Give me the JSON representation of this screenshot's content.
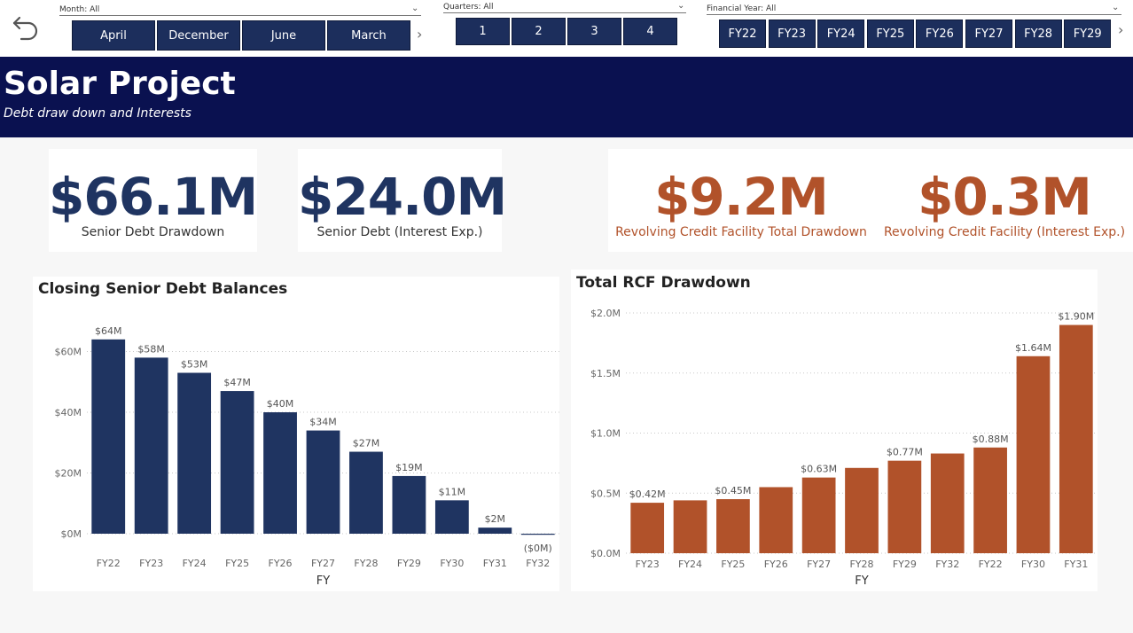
{
  "slicers": {
    "month": {
      "title": "Month: All",
      "items": [
        "April",
        "December",
        "June",
        "March"
      ]
    },
    "quarters": {
      "title": "Quarters: All",
      "items": [
        "1",
        "2",
        "3",
        "4"
      ]
    },
    "fy": {
      "title": "Financial Year: All",
      "items": [
        "FY22",
        "FY23",
        "FY24",
        "FY25",
        "FY26",
        "FY27",
        "FY28",
        "FY29"
      ]
    }
  },
  "header": {
    "title": "Solar Project",
    "subtitle": "Debt draw down and Interests"
  },
  "kpis": [
    {
      "value": "$66.1M",
      "label": "Senior Debt Drawdown",
      "color": "#1f3461"
    },
    {
      "value": "$24.0M",
      "label": "Senior Debt (Interest Exp.)",
      "color": "#1f3461"
    },
    {
      "value": "$9.2M",
      "label": "Revolving Credit Facility Total Drawdown",
      "color": "#b1522a"
    },
    {
      "value": "$0.3M",
      "label": "Revolving Credit Facility (Interest Exp.)",
      "color": "#b1522a"
    }
  ],
  "chart_data": [
    {
      "type": "bar",
      "title": "Closing Senior Debt Balances",
      "xlabel": "FY",
      "ylabel": "",
      "categories": [
        "FY22",
        "FY23",
        "FY24",
        "FY25",
        "FY26",
        "FY27",
        "FY28",
        "FY29",
        "FY30",
        "FY31",
        "FY32"
      ],
      "values": [
        64,
        58,
        53,
        47,
        40,
        34,
        27,
        19,
        11,
        2,
        -0.2
      ],
      "data_labels": [
        "$64M",
        "$58M",
        "$53M",
        "$47M",
        "$40M",
        "$34M",
        "$27M",
        "$19M",
        "$11M",
        "$2M",
        "($0M)"
      ],
      "y_ticks": [
        0,
        20,
        40,
        60
      ],
      "y_tick_labels": [
        "$0M",
        "$20M",
        "$40M",
        "$60M"
      ],
      "ylim": [
        0,
        66
      ],
      "color": "#1f3461",
      "grid": true
    },
    {
      "type": "bar",
      "title": "Total RCF Drawdown",
      "xlabel": "FY",
      "ylabel": "",
      "categories": [
        "FY23",
        "FY24",
        "FY25",
        "FY26",
        "FY27",
        "FY28",
        "FY29",
        "FY32",
        "FY22",
        "FY30",
        "FY31"
      ],
      "values": [
        0.42,
        0.44,
        0.45,
        0.55,
        0.63,
        0.71,
        0.77,
        0.83,
        0.88,
        1.64,
        1.9
      ],
      "data_labels": [
        "$0.42M",
        "",
        "$0.45M",
        "",
        "$0.63M",
        "",
        "$0.77M",
        "",
        "$0.88M",
        "$1.64M",
        "$1.90M"
      ],
      "y_ticks": [
        0,
        0.5,
        1.0,
        1.5,
        2.0
      ],
      "y_tick_labels": [
        "$0.0M",
        "$0.5M",
        "$1.0M",
        "$1.5M",
        "$2.0M"
      ],
      "ylim": [
        0,
        2.0
      ],
      "color": "#b1522a",
      "grid": true
    }
  ]
}
